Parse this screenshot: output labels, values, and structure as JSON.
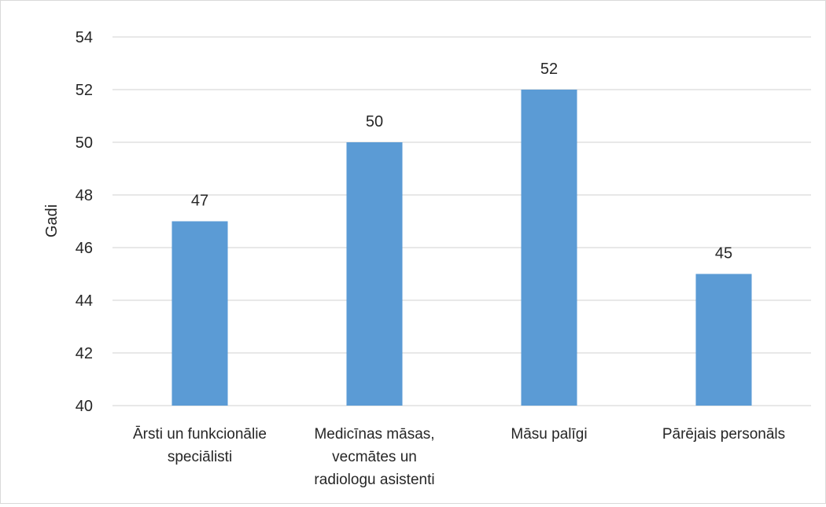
{
  "chart_data": {
    "type": "bar",
    "title": "",
    "xlabel": "",
    "ylabel": "Gadi",
    "ylim": [
      40,
      54
    ],
    "ytick_step": 2,
    "categories": [
      [
        "Ārsti un funkcionālie",
        "speciālisti"
      ],
      [
        "Medicīnas māsas,",
        "vecmātes un",
        "radiologu asistenti"
      ],
      [
        "Māsu palīgi"
      ],
      [
        "Pārējais personāls"
      ]
    ],
    "values": [
      47,
      50,
      52,
      45
    ],
    "data_labels": [
      "47",
      "50",
      "52",
      "45"
    ],
    "grid": true,
    "legend": "none",
    "colors": {
      "bar": "#5b9bd5",
      "grid": "#d9d9d9",
      "text": "#262626"
    }
  }
}
